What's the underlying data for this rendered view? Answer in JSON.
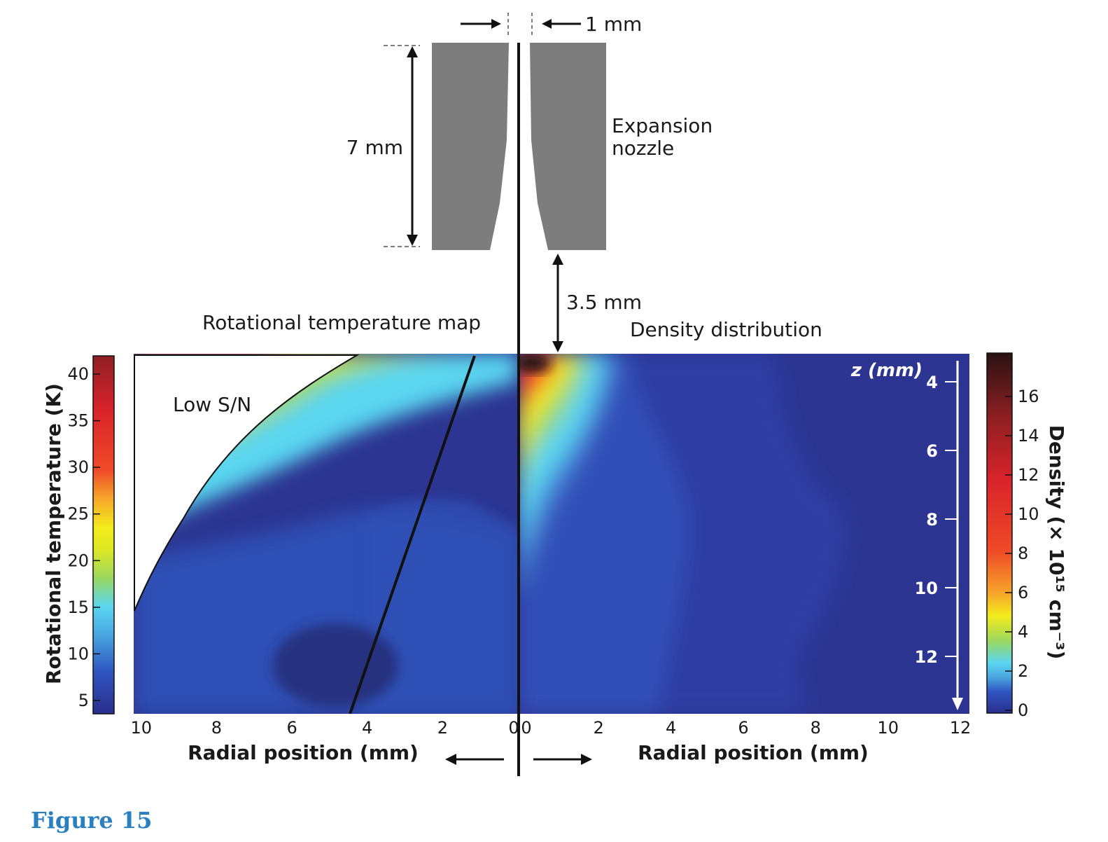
{
  "chart_data": [
    {
      "type": "heatmap",
      "title": "Rotational temperature map",
      "xlabel": "Radial position (mm)",
      "ylabel": "",
      "x_ticks": [
        10,
        8,
        6,
        4,
        2,
        0
      ],
      "x_direction": "decreasing-left-to-right",
      "xlim": [
        10.2,
        0
      ],
      "colorbar": {
        "label": "Rotational temperature (K)",
        "ticks": [
          5,
          10,
          15,
          20,
          25,
          30,
          35,
          40
        ],
        "range": [
          3,
          43
        ],
        "colors": [
          "#2a2e8e",
          "#2f56c0",
          "#4aa6e0",
          "#5ad6f0",
          "#9ad85e",
          "#dde824",
          "#f3ec1c",
          "#f6a82a",
          "#ef4a28",
          "#d8232a",
          "#8e1f22"
        ]
      },
      "annotations": [
        "Low S/N"
      ],
      "masked_region": "Low S/N"
    },
    {
      "type": "heatmap",
      "title": "Density distribution",
      "xlabel": "Radial position (mm)",
      "ylabel": "z (mm)",
      "x_ticks": [
        0,
        2,
        4,
        6,
        8,
        10,
        12
      ],
      "xlim": [
        0,
        12
      ],
      "y_ticks": [
        4,
        6,
        8,
        10,
        12
      ],
      "ylim": [
        3.6,
        14
      ],
      "colorbar": {
        "label": "Density (× 10¹⁵ cm⁻³)",
        "ticks": [
          0,
          2,
          4,
          6,
          8,
          10,
          12,
          14,
          16
        ],
        "range": [
          0,
          18
        ],
        "colors": [
          "#2a2e8e",
          "#2f56c0",
          "#4aa6e0",
          "#5ad6f0",
          "#9ad85e",
          "#f3ec1c",
          "#f6a82a",
          "#ef4a28",
          "#d8232a",
          "#8e1f22",
          "#2a1212"
        ]
      }
    }
  ],
  "nozzle": {
    "label_line1": "Expansion",
    "label_line2": "nozzle",
    "orifice_label": "1 mm",
    "height_label": "7 mm",
    "gap_label": "3.5 mm",
    "color": "#7d7d7d"
  },
  "caption": "Figure 15",
  "colors": {
    "caption": "#2a7fc1",
    "plot_background": "#2c3591"
  }
}
